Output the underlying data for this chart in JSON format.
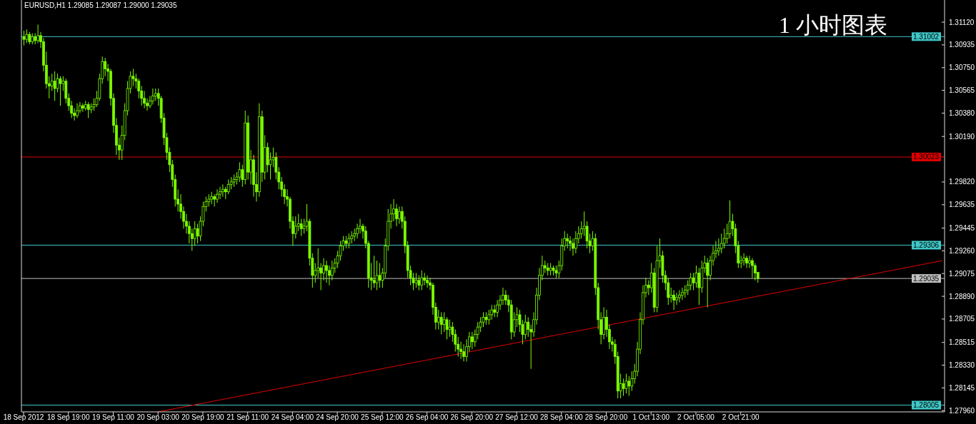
{
  "chart_data": {
    "type": "candlestick",
    "title": "EURUSD,H1  1.29085 1.29087 1.29000 1.29035",
    "annotations": [
      "1 小时图表"
    ],
    "color": "#7cfc00",
    "categories": [
      "18 Sep 2012",
      null,
      null,
      null,
      null,
      null,
      null,
      null,
      null,
      null,
      null,
      null,
      null,
      null,
      null,
      null,
      "18 Sep 19:00",
      null,
      null,
      null,
      null,
      null,
      null,
      null,
      null,
      null,
      null,
      null,
      null,
      null,
      null,
      null,
      "19 Sep 11:00",
      null,
      null,
      null,
      null,
      null,
      null,
      null,
      null,
      null,
      null,
      null,
      null,
      null,
      null,
      null,
      "20 Sep 03:00",
      null,
      null,
      null,
      null,
      null,
      null,
      null,
      null,
      null,
      null,
      null,
      null,
      null,
      null,
      null,
      "20 Sep 19:00",
      null,
      null,
      null,
      null,
      null,
      null,
      null,
      null,
      null,
      null,
      null,
      null,
      null,
      null,
      null,
      "21 Sep 11:00",
      null,
      null,
      null,
      null,
      null,
      null,
      null,
      null,
      null,
      null,
      null,
      null,
      null,
      null,
      null,
      "24 Sep 04:00",
      null,
      null,
      null,
      null,
      null,
      null,
      null,
      null,
      null,
      null,
      null,
      null,
      null,
      null,
      null,
      "24 Sep 20:00",
      null,
      null,
      null,
      null,
      null,
      null,
      null,
      null,
      null,
      null,
      null,
      null,
      null,
      null,
      null,
      "25 Sep 12:00",
      null,
      null,
      null,
      null,
      null,
      null,
      null,
      null,
      null,
      null,
      null,
      null,
      null,
      null,
      null,
      "26 Sep 04:00",
      null,
      null,
      null,
      null,
      null,
      null,
      null,
      null,
      null,
      null,
      null,
      null,
      null,
      null,
      null,
      "26 Sep 20:00",
      null,
      null,
      null,
      null,
      null,
      null,
      null,
      null,
      null,
      null,
      null,
      null,
      null,
      null,
      null,
      "27 Sep 12:00",
      null,
      null,
      null,
      null,
      null,
      null,
      null,
      null,
      null,
      null,
      null,
      null,
      null,
      null,
      null,
      "28 Sep 04:00",
      null,
      null,
      null,
      null,
      null,
      null,
      null,
      null,
      null,
      null,
      null,
      null,
      null,
      null,
      null,
      "28 Sep 20:00",
      null,
      null,
      null,
      null,
      null,
      null,
      null,
      null,
      null,
      null,
      null,
      null,
      null,
      null,
      null,
      "1 Oct 13:00",
      null,
      null,
      null,
      null,
      null,
      null,
      null,
      null,
      null,
      null,
      null,
      null,
      null,
      null,
      null,
      "2 Oct 05:00",
      null,
      null,
      null,
      null,
      null,
      null,
      null,
      null,
      null,
      null,
      null,
      null,
      null,
      null,
      null,
      "2 Oct 21:00",
      null,
      null,
      null,
      null,
      null,
      null,
      null,
      null,
      null,
      null,
      null,
      null,
      null,
      null,
      null,
      null,
      null,
      null,
      null,
      null,
      null,
      null,
      null,
      null,
      null,
      null,
      null,
      null,
      null,
      null,
      null,
      null,
      null,
      null,
      null,
      null,
      null,
      null,
      null,
      null,
      null,
      null,
      null,
      null,
      null,
      null,
      null,
      null,
      null,
      null,
      null,
      null,
      null,
      null,
      null,
      null,
      null,
      null,
      null,
      null,
      null,
      null,
      null,
      null,
      null,
      null,
      null,
      null,
      null,
      null,
      null,
      null
    ],
    "ohlc": [
      [
        1.31,
        1.3105,
        1.3093,
        1.3098
      ],
      [
        1.3098,
        1.3106,
        1.3095,
        1.3102
      ],
      [
        1.3102,
        1.3104,
        1.3094,
        1.3096
      ],
      [
        1.3096,
        1.3103,
        1.3094,
        1.31
      ],
      [
        1.31,
        1.3103,
        1.3094,
        1.3097
      ],
      [
        1.3097,
        1.311,
        1.3095,
        1.3101
      ],
      [
        1.3101,
        1.3104,
        1.3091,
        1.3096
      ],
      [
        1.3096,
        1.3099,
        1.3072,
        1.3077
      ],
      [
        1.3077,
        1.3088,
        1.3058,
        1.3062
      ],
      [
        1.3062,
        1.3068,
        1.305,
        1.306
      ],
      [
        1.306,
        1.307,
        1.3056,
        1.3064
      ],
      [
        1.3064,
        1.3072,
        1.3048,
        1.3058
      ],
      [
        1.3058,
        1.307,
        1.3055,
        1.3066
      ],
      [
        1.3066,
        1.3068,
        1.3044,
        1.3062
      ],
      [
        1.3062,
        1.3068,
        1.3056,
        1.3064
      ],
      [
        1.3064,
        1.3066,
        1.3046,
        1.305
      ],
      [
        1.305,
        1.3054,
        1.304,
        1.3044
      ],
      [
        1.3044,
        1.3048,
        1.3034,
        1.3038
      ],
      [
        1.3038,
        1.3042,
        1.3032,
        1.3036
      ],
      [
        1.3036,
        1.3046,
        1.3034,
        1.304
      ],
      [
        1.304,
        1.3047,
        1.3038,
        1.3044
      ],
      [
        1.3044,
        1.3046,
        1.3039,
        1.3042
      ],
      [
        1.3042,
        1.3048,
        1.304,
        1.3045
      ],
      [
        1.3045,
        1.3047,
        1.3034,
        1.3041
      ],
      [
        1.3041,
        1.3046,
        1.3038,
        1.3043
      ],
      [
        1.3043,
        1.305,
        1.304,
        1.3045
      ],
      [
        1.3045,
        1.3056,
        1.3043,
        1.305
      ],
      [
        1.305,
        1.307,
        1.3048,
        1.3066
      ],
      [
        1.3066,
        1.3084,
        1.3062,
        1.308
      ],
      [
        1.308,
        1.3083,
        1.3068,
        1.3074
      ],
      [
        1.3074,
        1.3078,
        1.3064,
        1.3072
      ],
      [
        1.3072,
        1.3074,
        1.3044,
        1.305
      ],
      [
        1.305,
        1.3054,
        1.3022,
        1.3028
      ],
      [
        1.3028,
        1.3034,
        1.3004,
        1.3012
      ],
      [
        1.3012,
        1.3018,
        1.3,
        1.3008
      ],
      [
        1.3008,
        1.3028,
        1.3,
        1.302
      ],
      [
        1.302,
        1.3046,
        1.3016,
        1.304
      ],
      [
        1.304,
        1.3064,
        1.3036,
        1.3058
      ],
      [
        1.3058,
        1.3072,
        1.3054,
        1.3068
      ],
      [
        1.3068,
        1.3074,
        1.306,
        1.3066
      ],
      [
        1.3066,
        1.307,
        1.3058,
        1.3064
      ],
      [
        1.3064,
        1.3066,
        1.305,
        1.3056
      ],
      [
        1.3056,
        1.306,
        1.3044,
        1.305
      ],
      [
        1.305,
        1.3056,
        1.3042,
        1.3046
      ],
      [
        1.3046,
        1.305,
        1.304,
        1.3044
      ],
      [
        1.3044,
        1.3052,
        1.3042,
        1.3048
      ],
      [
        1.3048,
        1.3058,
        1.3045,
        1.3052
      ],
      [
        1.3052,
        1.3058,
        1.3048,
        1.3054
      ],
      [
        1.3054,
        1.3058,
        1.3044,
        1.305
      ],
      [
        1.305,
        1.3052,
        1.303,
        1.3034
      ],
      [
        1.3034,
        1.3038,
        1.3012,
        1.3018
      ],
      [
        1.3018,
        1.3022,
        1.3,
        1.3006
      ],
      [
        1.3006,
        1.301,
        1.299,
        1.2996
      ],
      [
        1.2996,
        1.3,
        1.2978,
        1.2984
      ],
      [
        1.2984,
        1.2988,
        1.2962,
        1.2968
      ],
      [
        1.2968,
        1.2976,
        1.2958,
        1.2964
      ],
      [
        1.2964,
        1.2972,
        1.2952,
        1.2958
      ],
      [
        1.2958,
        1.2962,
        1.2944,
        1.295
      ],
      [
        1.295,
        1.2956,
        1.294,
        1.2946
      ],
      [
        1.2946,
        1.295,
        1.2932,
        1.294
      ],
      [
        1.294,
        1.2944,
        1.2926,
        1.2936
      ],
      [
        1.2936,
        1.295,
        1.293,
        1.2944
      ],
      [
        1.2944,
        1.2948,
        1.2932,
        1.2938
      ],
      [
        1.2938,
        1.2954,
        1.2934,
        1.295
      ],
      [
        1.295,
        1.2966,
        1.2946,
        1.2962
      ],
      [
        1.2962,
        1.297,
        1.2958,
        1.2966
      ],
      [
        1.2966,
        1.2972,
        1.2962,
        1.2968
      ],
      [
        1.2968,
        1.2974,
        1.2964,
        1.297
      ],
      [
        1.297,
        1.2972,
        1.2962,
        1.2968
      ],
      [
        1.2968,
        1.2976,
        1.2965,
        1.2972
      ],
      [
        1.2972,
        1.2978,
        1.2968,
        1.2974
      ],
      [
        1.2974,
        1.298,
        1.297,
        1.2976
      ],
      [
        1.2976,
        1.2978,
        1.2968,
        1.2974
      ],
      [
        1.2974,
        1.2984,
        1.2972,
        1.298
      ],
      [
        1.298,
        1.2986,
        1.2976,
        1.2982
      ],
      [
        1.2982,
        1.2988,
        1.2978,
        1.2984
      ],
      [
        1.2984,
        1.299,
        1.298,
        1.2986
      ],
      [
        1.2986,
        1.2998,
        1.2982,
        1.2992
      ],
      [
        1.2992,
        1.2996,
        1.2978,
        1.2984
      ],
      [
        1.2984,
        1.304,
        1.298,
        1.303
      ],
      [
        1.303,
        1.3036,
        1.2984,
        1.299
      ],
      [
        1.299,
        1.3008,
        1.298,
        1.3
      ],
      [
        1.3,
        1.3004,
        1.297,
        1.298
      ],
      [
        1.298,
        1.299,
        1.2966,
        1.2974
      ],
      [
        1.2974,
        1.3046,
        1.297,
        1.3035
      ],
      [
        1.3035,
        1.304,
        1.2982,
        1.299
      ],
      [
        1.299,
        1.302,
        1.2984,
        1.301
      ],
      [
        1.301,
        1.3014,
        1.299,
        1.2996
      ],
      [
        1.2996,
        1.3006,
        1.2984,
        1.3
      ],
      [
        1.3,
        1.301,
        1.2994,
        1.3002
      ],
      [
        1.3002,
        1.3006,
        1.2984,
        1.299
      ],
      [
        1.299,
        1.2994,
        1.2976,
        1.2982
      ],
      [
        1.2982,
        1.2986,
        1.297,
        1.2976
      ],
      [
        1.2976,
        1.298,
        1.2964,
        1.297
      ],
      [
        1.297,
        1.2976,
        1.2962,
        1.2968
      ],
      [
        1.2968,
        1.297,
        1.2944,
        1.295
      ],
      [
        1.295,
        1.2954,
        1.293,
        1.294
      ],
      [
        1.294,
        1.2954,
        1.2936,
        1.2946
      ],
      [
        1.2946,
        1.2956,
        1.2942,
        1.2948
      ],
      [
        1.2948,
        1.2952,
        1.2938,
        1.2944
      ],
      [
        1.2944,
        1.2952,
        1.294,
        1.2946
      ],
      [
        1.2946,
        1.2964,
        1.2942,
        1.295
      ],
      [
        1.295,
        1.2952,
        1.2914,
        1.292
      ],
      [
        1.292,
        1.2924,
        1.2896,
        1.2906
      ],
      [
        1.2906,
        1.2916,
        1.29,
        1.291
      ],
      [
        1.291,
        1.2928,
        1.2904,
        1.2912
      ],
      [
        1.2912,
        1.2916,
        1.2894,
        1.2908
      ],
      [
        1.2908,
        1.292,
        1.2902,
        1.2914
      ],
      [
        1.2914,
        1.2918,
        1.29,
        1.291
      ],
      [
        1.291,
        1.2914,
        1.2898,
        1.2906
      ],
      [
        1.2906,
        1.2918,
        1.2902,
        1.2912
      ],
      [
        1.2912,
        1.292,
        1.2908,
        1.2916
      ],
      [
        1.2916,
        1.2926,
        1.2912,
        1.2922
      ],
      [
        1.2922,
        1.2934,
        1.2918,
        1.293
      ],
      [
        1.293,
        1.2938,
        1.2926,
        1.2934
      ],
      [
        1.2934,
        1.2938,
        1.2928,
        1.2932
      ],
      [
        1.2932,
        1.294,
        1.2928,
        1.2936
      ],
      [
        1.2936,
        1.2942,
        1.2932,
        1.2938
      ],
      [
        1.2938,
        1.2944,
        1.2934,
        1.294
      ],
      [
        1.294,
        1.2948,
        1.2936,
        1.2944
      ],
      [
        1.2944,
        1.2952,
        1.294,
        1.2946
      ],
      [
        1.2946,
        1.2948,
        1.2936,
        1.2942
      ],
      [
        1.2942,
        1.2946,
        1.2928,
        1.2932
      ],
      [
        1.2932,
        1.2934,
        1.2896,
        1.2904
      ],
      [
        1.2904,
        1.2916,
        1.2894,
        1.2902
      ],
      [
        1.2902,
        1.2922,
        1.2896,
        1.29
      ],
      [
        1.29,
        1.2918,
        1.2894,
        1.2906
      ],
      [
        1.2906,
        1.2916,
        1.2896,
        1.2902
      ],
      [
        1.2902,
        1.2912,
        1.2896,
        1.2908
      ],
      [
        1.2908,
        1.2936,
        1.2904,
        1.293
      ],
      [
        1.293,
        1.296,
        1.2926,
        1.295
      ],
      [
        1.295,
        1.2964,
        1.2944,
        1.2956
      ],
      [
        1.2956,
        1.2968,
        1.295,
        1.296
      ],
      [
        1.296,
        1.2964,
        1.2946,
        1.2952
      ],
      [
        1.2952,
        1.2962,
        1.2948,
        1.2958
      ],
      [
        1.2958,
        1.2962,
        1.2944,
        1.295
      ],
      [
        1.295,
        1.2954,
        1.2924,
        1.293
      ],
      [
        1.293,
        1.2934,
        1.2904,
        1.291
      ],
      [
        1.291,
        1.2914,
        1.2898,
        1.2904
      ],
      [
        1.2904,
        1.2908,
        1.2894,
        1.29
      ],
      [
        1.29,
        1.2908,
        1.2896,
        1.2902
      ],
      [
        1.2902,
        1.2906,
        1.2894,
        1.2898
      ],
      [
        1.2898,
        1.291,
        1.2894,
        1.2904
      ],
      [
        1.2904,
        1.2908,
        1.2898,
        1.2902
      ],
      [
        1.2902,
        1.2906,
        1.2896,
        1.29
      ],
      [
        1.29,
        1.2904,
        1.2894,
        1.2898
      ],
      [
        1.2898,
        1.29,
        1.2874,
        1.288
      ],
      [
        1.288,
        1.2884,
        1.2862,
        1.2868
      ],
      [
        1.2868,
        1.2878,
        1.2862,
        1.2872
      ],
      [
        1.2872,
        1.2876,
        1.2858,
        1.2866
      ],
      [
        1.2866,
        1.2876,
        1.286,
        1.287
      ],
      [
        1.287,
        1.2872,
        1.2854,
        1.2862
      ],
      [
        1.2862,
        1.287,
        1.2856,
        1.2864
      ],
      [
        1.2864,
        1.2868,
        1.2852,
        1.2858
      ],
      [
        1.2858,
        1.2862,
        1.2844,
        1.285
      ],
      [
        1.285,
        1.2856,
        1.284,
        1.2846
      ],
      [
        1.2846,
        1.2852,
        1.2838,
        1.2844
      ],
      [
        1.2844,
        1.285,
        1.2836,
        1.284
      ],
      [
        1.284,
        1.2854,
        1.2836,
        1.2848
      ],
      [
        1.2848,
        1.286,
        1.2844,
        1.2856
      ],
      [
        1.2856,
        1.286,
        1.2846,
        1.2852
      ],
      [
        1.2852,
        1.2862,
        1.2848,
        1.2858
      ],
      [
        1.2858,
        1.2868,
        1.2854,
        1.2864
      ],
      [
        1.2864,
        1.2872,
        1.286,
        1.2868
      ],
      [
        1.2868,
        1.2876,
        1.2864,
        1.2872
      ],
      [
        1.2872,
        1.2876,
        1.2866,
        1.287
      ],
      [
        1.287,
        1.2878,
        1.2866,
        1.2874
      ],
      [
        1.2874,
        1.2882,
        1.287,
        1.2878
      ],
      [
        1.2878,
        1.2882,
        1.2872,
        1.2876
      ],
      [
        1.2876,
        1.2886,
        1.2872,
        1.2882
      ],
      [
        1.2882,
        1.289,
        1.2878,
        1.2886
      ],
      [
        1.2886,
        1.2896,
        1.2882,
        1.289
      ],
      [
        1.289,
        1.2894,
        1.2882,
        1.2886
      ],
      [
        1.2886,
        1.289,
        1.2876,
        1.2882
      ],
      [
        1.2882,
        1.2886,
        1.2854,
        1.286
      ],
      [
        1.286,
        1.2876,
        1.2856,
        1.287
      ],
      [
        1.287,
        1.288,
        1.2864,
        1.2874
      ],
      [
        1.2874,
        1.2878,
        1.286,
        1.2866
      ],
      [
        1.2866,
        1.287,
        1.285,
        1.2858
      ],
      [
        1.2858,
        1.2874,
        1.2854,
        1.2868
      ],
      [
        1.2868,
        1.2872,
        1.2856,
        1.2862
      ],
      [
        1.2862,
        1.2866,
        1.283,
        1.286
      ],
      [
        1.286,
        1.2876,
        1.2856,
        1.287
      ],
      [
        1.287,
        1.2896,
        1.2866,
        1.289
      ],
      [
        1.289,
        1.2912,
        1.2886,
        1.2906
      ],
      [
        1.2906,
        1.2922,
        1.2902,
        1.2914
      ],
      [
        1.2914,
        1.2918,
        1.2908,
        1.2912
      ],
      [
        1.2912,
        1.2916,
        1.2906,
        1.291
      ],
      [
        1.291,
        1.2916,
        1.2906,
        1.2912
      ],
      [
        1.2912,
        1.2914,
        1.2906,
        1.291
      ],
      [
        1.291,
        1.2914,
        1.2904,
        1.2908
      ],
      [
        1.2908,
        1.2918,
        1.2904,
        1.2914
      ],
      [
        1.2914,
        1.2936,
        1.291,
        1.293
      ],
      [
        1.293,
        1.2942,
        1.2926,
        1.2936
      ],
      [
        1.2936,
        1.294,
        1.2928,
        1.2934
      ],
      [
        1.2934,
        1.2938,
        1.2926,
        1.2932
      ],
      [
        1.2932,
        1.2936,
        1.2922,
        1.2928
      ],
      [
        1.2928,
        1.2942,
        1.2924,
        1.2936
      ],
      [
        1.2936,
        1.2946,
        1.2932,
        1.294
      ],
      [
        1.294,
        1.295,
        1.2936,
        1.2944
      ],
      [
        1.2944,
        1.2958,
        1.2938,
        1.2946
      ],
      [
        1.2946,
        1.295,
        1.2928,
        1.2934
      ],
      [
        1.2934,
        1.294,
        1.2924,
        1.293
      ],
      [
        1.293,
        1.2942,
        1.2926,
        1.2936
      ],
      [
        1.2936,
        1.294,
        1.289,
        1.2896
      ],
      [
        1.2896,
        1.29,
        1.2862,
        1.287
      ],
      [
        1.287,
        1.2876,
        1.285,
        1.2858
      ],
      [
        1.2858,
        1.288,
        1.2854,
        1.2872
      ],
      [
        1.2872,
        1.2878,
        1.2856,
        1.2862
      ],
      [
        1.2862,
        1.2866,
        1.2846,
        1.2852
      ],
      [
        1.2852,
        1.2856,
        1.2844,
        1.285
      ],
      [
        1.285,
        1.2854,
        1.2834,
        1.284
      ],
      [
        1.284,
        1.2844,
        1.2806,
        1.2812
      ],
      [
        1.2812,
        1.2826,
        1.2806,
        1.2818
      ],
      [
        1.2818,
        1.2822,
        1.2808,
        1.2814
      ],
      [
        1.2814,
        1.2826,
        1.281,
        1.282
      ],
      [
        1.282,
        1.2824,
        1.2808,
        1.2816
      ],
      [
        1.2816,
        1.2828,
        1.2812,
        1.2822
      ],
      [
        1.2822,
        1.2834,
        1.2818,
        1.2828
      ],
      [
        1.2828,
        1.2852,
        1.2824,
        1.2846
      ],
      [
        1.2846,
        1.2876,
        1.2842,
        1.287
      ],
      [
        1.287,
        1.2898,
        1.2866,
        1.2892
      ],
      [
        1.2892,
        1.2904,
        1.2888,
        1.2898
      ],
      [
        1.2898,
        1.2902,
        1.289,
        1.2896
      ],
      [
        1.2896,
        1.2916,
        1.2892,
        1.2908
      ],
      [
        1.2908,
        1.2912,
        1.2876,
        1.288
      ],
      [
        1.288,
        1.293,
        1.2876,
        1.2918
      ],
      [
        1.2918,
        1.2936,
        1.2912,
        1.2922
      ],
      [
        1.2922,
        1.2926,
        1.29,
        1.2906
      ],
      [
        1.2906,
        1.291,
        1.2894,
        1.29
      ],
      [
        1.29,
        1.2904,
        1.2882,
        1.2888
      ],
      [
        1.2888,
        1.2896,
        1.2884,
        1.289
      ],
      [
        1.289,
        1.2894,
        1.2878,
        1.2886
      ],
      [
        1.2886,
        1.2892,
        1.2882,
        1.2888
      ],
      [
        1.2888,
        1.2894,
        1.2884,
        1.289
      ],
      [
        1.289,
        1.2896,
        1.2886,
        1.2892
      ],
      [
        1.2892,
        1.2898,
        1.2888,
        1.2894
      ],
      [
        1.2894,
        1.2902,
        1.289,
        1.2898
      ],
      [
        1.2898,
        1.2908,
        1.2894,
        1.2904
      ],
      [
        1.2904,
        1.2908,
        1.2894,
        1.29
      ],
      [
        1.29,
        1.2914,
        1.2896,
        1.2908
      ],
      [
        1.2908,
        1.2912,
        1.2882,
        1.2896
      ],
      [
        1.2896,
        1.2918,
        1.2892,
        1.2912
      ],
      [
        1.2912,
        1.2922,
        1.2908,
        1.2916
      ],
      [
        1.2916,
        1.292,
        1.288,
        1.2906
      ],
      [
        1.2906,
        1.2922,
        1.2902,
        1.2918
      ],
      [
        1.2918,
        1.293,
        1.2914,
        1.2924
      ],
      [
        1.2924,
        1.2934,
        1.292,
        1.2926
      ],
      [
        1.2926,
        1.2936,
        1.2922,
        1.2928
      ],
      [
        1.2928,
        1.294,
        1.2924,
        1.2932
      ],
      [
        1.2932,
        1.2944,
        1.2928,
        1.2936
      ],
      [
        1.2936,
        1.2948,
        1.2932,
        1.294
      ],
      [
        1.294,
        1.2967,
        1.2936,
        1.295
      ],
      [
        1.295,
        1.2956,
        1.2938,
        1.2944
      ],
      [
        1.2944,
        1.2948,
        1.2924,
        1.293
      ],
      [
        1.293,
        1.2934,
        1.2912,
        1.2916
      ],
      [
        1.2916,
        1.2922,
        1.2912,
        1.2918
      ],
      [
        1.2918,
        1.2924,
        1.2914,
        1.292
      ],
      [
        1.292,
        1.2922,
        1.2912,
        1.2916
      ],
      [
        1.2916,
        1.2922,
        1.2912,
        1.2918
      ],
      [
        1.2918,
        1.292,
        1.2904,
        1.2914
      ],
      [
        1.2914,
        1.2916,
        1.2902,
        1.2908
      ],
      [
        1.29085,
        1.29087,
        1.29,
        1.29035
      ],
      null,
      null,
      null,
      null,
      null,
      null,
      null,
      null,
      null,
      null,
      null,
      null,
      null,
      null,
      null,
      null,
      null,
      null,
      null,
      null,
      null,
      null,
      null,
      null,
      null,
      null,
      null,
      null,
      null,
      null,
      null,
      null,
      null,
      null,
      null,
      null,
      null,
      null,
      null,
      null,
      null,
      null,
      null,
      null,
      null,
      null,
      null,
      null,
      null,
      null,
      null,
      null,
      null,
      null,
      null,
      null,
      null,
      null,
      null,
      null,
      null,
      null,
      null,
      null,
      null,
      null
    ],
    "series": [
      {
        "type": "line",
        "color": "#e00000",
        "values": [
          null,
          null,
          null,
          null,
          null,
          null,
          null,
          null,
          null,
          null,
          null,
          null,
          null,
          null,
          null,
          null,
          null,
          null,
          null,
          null,
          null,
          null,
          null,
          null,
          null,
          null,
          null,
          null,
          null,
          null,
          null,
          null,
          null,
          null,
          null,
          null,
          null,
          null,
          null,
          null,
          null,
          null,
          null,
          null,
          null,
          null,
          null,
          null,
          1.2795,
          null,
          null,
          null,
          null,
          null,
          null,
          null,
          null,
          null,
          null,
          null,
          null,
          null,
          null,
          null,
          null,
          null,
          null,
          null,
          null,
          null,
          null,
          null,
          null,
          null,
          null,
          null,
          null,
          null,
          null,
          null,
          null,
          null,
          null,
          null,
          null,
          null,
          null,
          null,
          null,
          null,
          null,
          null,
          null,
          null,
          null,
          null,
          null,
          null,
          null,
          null,
          null,
          null,
          null,
          null,
          null,
          null,
          null,
          null,
          null,
          null,
          null,
          null,
          null,
          null,
          null,
          null,
          null,
          null,
          null,
          null,
          null,
          null,
          null,
          null,
          null,
          null,
          null,
          null,
          null,
          null,
          null,
          null,
          null,
          null,
          null,
          null,
          null,
          null,
          null,
          null,
          null,
          null,
          null,
          null,
          null,
          null,
          null,
          null,
          null,
          null,
          null,
          null,
          null,
          null,
          null,
          null,
          null,
          null,
          null,
          null,
          null,
          null,
          null,
          null,
          null,
          null,
          null,
          null,
          null,
          null,
          null,
          null,
          null,
          null,
          null,
          null,
          null,
          null,
          null,
          null,
          null,
          null,
          null,
          null,
          null,
          null,
          null,
          null,
          null,
          null,
          null,
          null,
          null,
          null,
          null,
          null,
          null,
          null,
          null,
          null,
          null,
          null,
          null,
          null,
          null,
          null,
          null,
          null,
          null,
          null,
          null,
          null,
          null,
          null,
          null,
          null,
          null,
          null,
          null,
          null,
          null,
          null,
          null,
          null,
          null,
          null,
          null,
          null,
          null,
          null,
          null,
          null,
          null,
          null,
          null,
          null,
          null,
          null,
          null,
          null,
          null,
          null,
          null,
          null,
          null,
          null,
          null,
          null,
          null,
          null,
          null,
          null,
          null,
          null,
          null,
          null,
          null,
          null,
          null,
          null,
          null,
          null,
          null,
          null,
          null,
          null,
          null,
          null,
          null,
          null,
          null,
          null,
          null,
          null,
          null,
          null,
          null,
          null,
          null,
          null,
          null,
          null,
          null,
          null,
          null,
          null,
          null,
          null,
          null,
          null,
          null,
          null,
          null,
          null,
          null,
          null,
          null,
          null,
          null,
          null,
          null,
          null,
          null,
          null,
          null,
          null,
          null,
          null,
          null,
          null,
          null,
          null,
          null,
          null,
          null,
          null,
          null,
          null,
          null,
          null,
          null,
          null,
          null,
          null,
          null,
          null,
          null,
          null,
          1.2918
        ]
      }
    ],
    "ylim": [
      1.2795,
      1.313
    ],
    "yticks": [
      {
        "value": 1.3112,
        "label": "1.31120"
      },
      1.30935,
      {
        "value": 1.3075,
        "label": "1.30750"
      },
      1.30565,
      {
        "value": 1.3038,
        "label": "1.30380"
      },
      {
        "value": 1.3019,
        "label": "1.30190"
      },
      {
        "value": 1.2982,
        "label": "1.29820"
      },
      1.29635,
      1.29445,
      {
        "value": 1.2926,
        "label": "1.29260"
      },
      1.29075,
      {
        "value": 1.2889,
        "label": "1.28890"
      },
      1.28705,
      1.28515,
      {
        "value": 1.2833,
        "label": "1.28330"
      },
      1.28145,
      {
        "value": 1.2796,
        "label": "1.27960"
      }
    ],
    "ref_lines": [
      {
        "axis": "y",
        "value": 1.31002,
        "label": "1.31002",
        "color": "#40c8c8"
      },
      {
        "axis": "y",
        "value": 1.30023,
        "label": "1.30023",
        "color": "#e00000"
      },
      {
        "axis": "y",
        "value": 1.29306,
        "label": "1.29306",
        "color": "#40c8c8"
      },
      {
        "axis": "y",
        "value": 1.29035,
        "label": "1.29035",
        "color": "#c0c0c0"
      },
      {
        "axis": "y",
        "value": 1.28005,
        "label": "1.28005",
        "color": "#40c8c8"
      }
    ]
  }
}
